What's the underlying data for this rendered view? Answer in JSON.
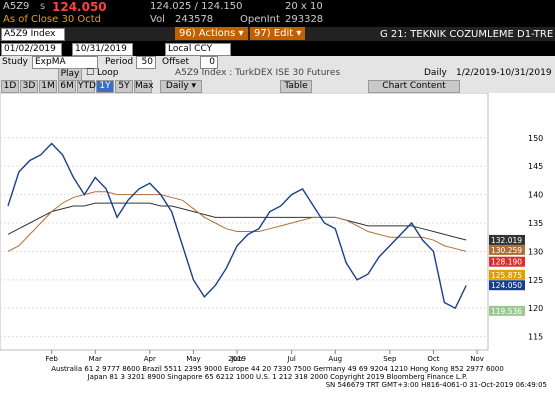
{
  "header": {
    "ticker": "A5Z9",
    "flag": "s",
    "last": "124.050",
    "bid_ask": "124.025 / 124.150",
    "size": "20 x 10",
    "as_of": "As of Close 30 Octd",
    "vol_label": "Vol",
    "vol": "243578",
    "oi_label": "OpenInt",
    "oi": "293328"
  },
  "toolbar": {
    "security": "A5Z9 Index",
    "actions": "96) Actions ▾",
    "edit": "97) Edit ▾",
    "page_title": "G 21: TEKNIK COZUMLEME D1-TRE",
    "start_date": "01/02/2019",
    "end_date": "10/31/2019",
    "currency": "Local CCY",
    "study_label": "Study",
    "study": "ExpMA",
    "period_label": "Period",
    "period": "50",
    "offset_label": "Offset",
    "offset": "0",
    "play": "Play",
    "loop": "Loop",
    "chart_name": "A5Z9 Index : TurkDEX ISE 30 Futures",
    "frequency": "Daily",
    "range": "1/2/2019-10/31/2019",
    "periods": [
      "1D",
      "3D",
      "1M",
      "6M",
      "YTD",
      "1Y",
      "5Y",
      "Max"
    ],
    "freq_menu": "Daily ▾",
    "table": "Table",
    "chart_content": "Chart Content"
  },
  "chart_data": {
    "type": "line",
    "year_label": "2019",
    "categories": [
      null,
      null,
      null,
      null,
      "Feb",
      null,
      null,
      null,
      "Mar",
      null,
      null,
      null,
      null,
      "Apr",
      null,
      null,
      null,
      "May",
      null,
      null,
      null,
      "Jun",
      null,
      null,
      null,
      null,
      "Jul",
      null,
      null,
      null,
      "Aug",
      null,
      null,
      null,
      null,
      "Sep",
      null,
      null,
      null,
      "Oct",
      null,
      null,
      null,
      "Nov",
      null
    ],
    "series": [
      {
        "color": "#333333",
        "values": [
          133,
          134,
          135,
          136,
          137,
          137.5,
          138,
          138,
          138.5,
          138.5,
          138.5,
          138.5,
          138.5,
          138.5,
          138,
          138,
          137.5,
          137,
          136.5,
          136,
          136,
          136,
          136,
          136,
          136,
          136,
          136,
          136,
          136,
          136,
          136,
          135.5,
          135,
          134.5,
          134.5,
          134.5,
          134.5,
          134.5,
          134,
          133.5,
          133,
          132.5,
          132,
          null,
          null
        ]
      },
      {
        "color": "#b0703a",
        "values": [
          130,
          131,
          133,
          135,
          137,
          138.5,
          139.5,
          140,
          140.5,
          140.5,
          140,
          140,
          140,
          140,
          140,
          139.5,
          139,
          137.5,
          136,
          135,
          134,
          133.5,
          133.5,
          133.5,
          134,
          134.5,
          135,
          135.5,
          136,
          136,
          136,
          135.5,
          134.5,
          133.5,
          133,
          132.5,
          132.5,
          132.5,
          132.5,
          132,
          131,
          130.5,
          130,
          null,
          null
        ]
      },
      {
        "color": "#1a3f8a",
        "values": [
          138,
          144,
          146,
          147,
          149,
          147,
          143,
          140,
          143,
          141,
          136,
          139,
          141,
          142,
          140,
          137,
          131,
          125,
          122,
          124,
          127,
          131,
          133,
          134,
          137,
          138,
          140,
          141,
          138,
          135,
          134,
          128,
          125,
          126,
          129,
          131,
          133,
          135,
          132,
          130,
          121,
          120,
          124,
          null,
          null
        ]
      }
    ],
    "ylim": [
      113,
      157
    ],
    "yticks": [
      115,
      120,
      125,
      130,
      135,
      140,
      145,
      150
    ],
    "grid": true,
    "last_value_labels": [
      {
        "value": 132.019,
        "label": "132.019",
        "color": "#333333"
      },
      {
        "value": 130.259,
        "label": "130.259",
        "color": "#b0703a"
      },
      {
        "value": 128.19,
        "label": "128.190",
        "color": "#d83030"
      },
      {
        "value": 125.875,
        "label": "125.875",
        "color": "#e0a000"
      },
      {
        "value": 124.05,
        "label": "124.050",
        "color": "#1a3f8a"
      },
      {
        "value": 119.536,
        "label": "119.536",
        "color": "#9ac890"
      }
    ]
  },
  "footer": {
    "line1": "Australia 61 2 9777 8600 Brazil 5511 2395 9000 Europe 44 20 7330 7500 Germany 49 69 9204 1210 Hong Kong 852 2977 6000",
    "line2": "Japan 81 3 3201 8900       Singapore 65 6212 1000       U.S. 1 212 318 2000       Copyright 2019 Bloomberg Finance L.P.",
    "line3": "SN 546679 TRT  GMT+3:00 H816-4061-0 31-Oct-2019 06:49:05"
  }
}
